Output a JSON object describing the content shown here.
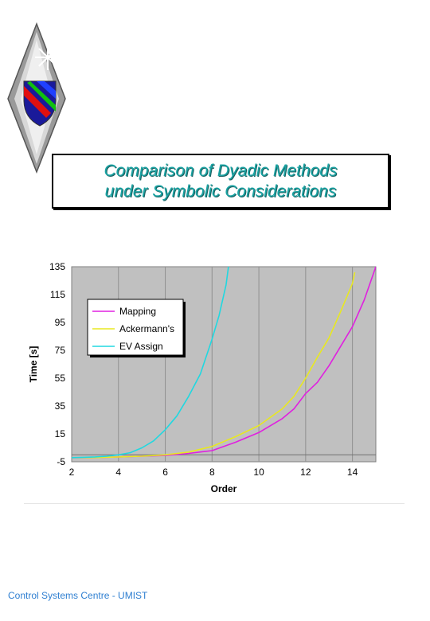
{
  "title": {
    "line1": "Comparison of Dyadic Methods",
    "line2": "under Symbolic Considerations"
  },
  "footer": "Control Systems Centre - UMIST",
  "colors": {
    "title_text": "#1aa3a3",
    "footer_text": "#2f7fd1",
    "plot_bg": "#c0c0c0",
    "mapping": "#e020e0",
    "ackermann": "#e8e820",
    "ev_assign": "#20d8e0"
  },
  "chart_data": {
    "type": "line",
    "xlabel": "Order",
    "ylabel": "Time [s]",
    "xlim": [
      2,
      15
    ],
    "ylim": [
      -5,
      135
    ],
    "x_ticks": [
      2,
      4,
      6,
      8,
      10,
      12,
      14
    ],
    "y_ticks": [
      -5,
      15,
      35,
      55,
      75,
      95,
      115,
      135
    ],
    "grid": "vertical",
    "legend_position": "top-left",
    "series": [
      {
        "name": "Mapping",
        "color": "#e020e0",
        "x": [
          2,
          3,
          4,
          5,
          6,
          7,
          8,
          9,
          10,
          11,
          11.5,
          12,
          12.5,
          13,
          13.5,
          14,
          14.5,
          15
        ],
        "y": [
          -2,
          -2,
          -1.5,
          -1,
          -0.5,
          1,
          3,
          9,
          16,
          26,
          33,
          44,
          52,
          64,
          78,
          92,
          111,
          135
        ]
      },
      {
        "name": "Ackermann's",
        "color": "#e8e820",
        "x": [
          2,
          3,
          4,
          5,
          6,
          7,
          8,
          9,
          10,
          11,
          11.5,
          12,
          12.5,
          13,
          13.5,
          14,
          14.1
        ],
        "y": [
          -2,
          -2,
          -1.5,
          -1,
          0,
          2,
          6,
          13,
          21,
          33,
          42,
          55,
          70,
          84,
          103,
          123,
          131
        ]
      },
      {
        "name": "EV Assign",
        "color": "#20d8e0",
        "x": [
          2,
          2.5,
          3,
          3.5,
          4,
          4.5,
          5,
          5.5,
          6,
          6.5,
          7,
          7.5,
          8,
          8.3,
          8.6,
          8.7
        ],
        "y": [
          -2,
          -1.8,
          -1.5,
          -1,
          0,
          1.5,
          5,
          10,
          18,
          28,
          42,
          58,
          83,
          100,
          122,
          135
        ]
      }
    ]
  }
}
